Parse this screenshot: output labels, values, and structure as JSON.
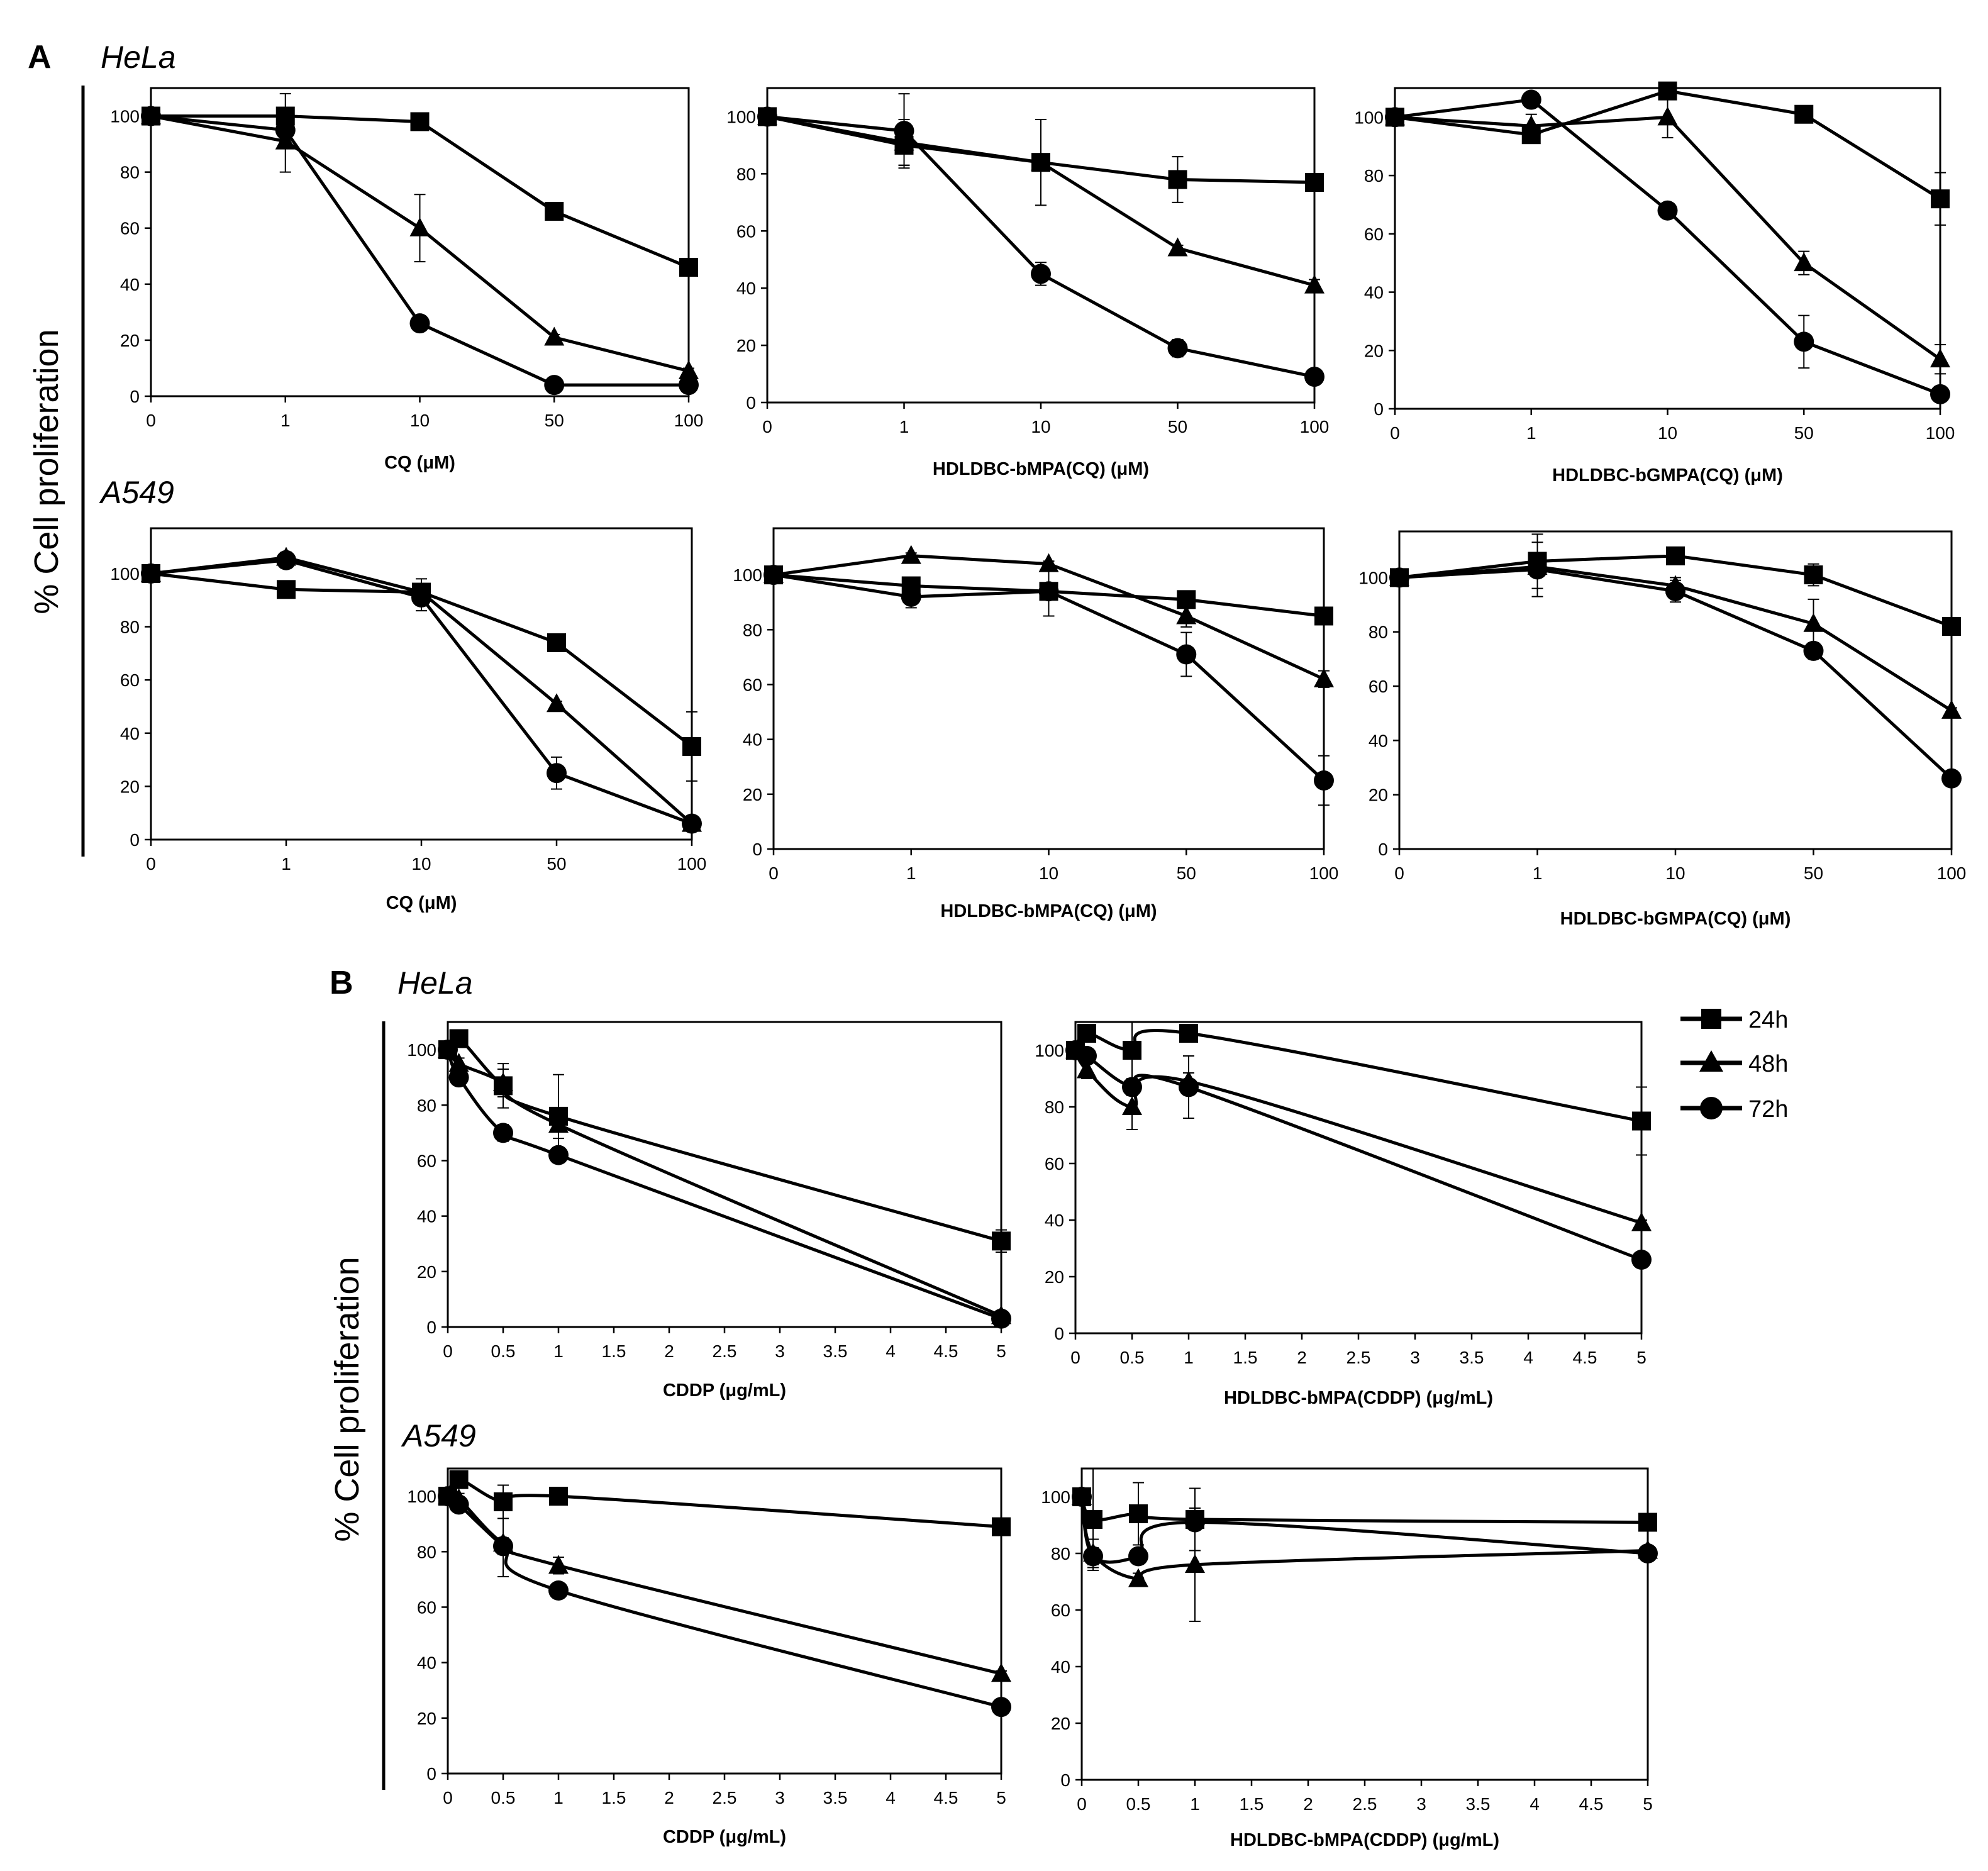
{
  "figure": {
    "panel_a_label": "A",
    "panel_b_label": "B",
    "y_axis_title": "% Cell proliferation",
    "cell_lines": {
      "hela": "HeLa",
      "a549": "A549"
    },
    "legend": [
      {
        "label": "24h",
        "marker": "square"
      },
      {
        "label": "48h",
        "marker": "triangle"
      },
      {
        "label": "72h",
        "marker": "circle"
      }
    ]
  },
  "chart_data": [
    {
      "id": "a-hela-cq",
      "type": "line",
      "panel": "A",
      "cell_line": "HeLa",
      "xlabel": "CQ (μM)",
      "ylabel": "% Cell proliferation",
      "categories": [
        "0",
        "1",
        "10",
        "50",
        "100"
      ],
      "yticks": [
        0,
        20,
        40,
        60,
        80,
        100
      ],
      "ylim": [
        0,
        110
      ],
      "series": [
        {
          "name": "24h",
          "marker": "square",
          "values": [
            100,
            100,
            98,
            66,
            46
          ],
          "errors": [
            0,
            8,
            2,
            1,
            1
          ]
        },
        {
          "name": "48h",
          "marker": "triangle",
          "values": [
            100,
            91,
            60,
            21,
            9
          ],
          "errors": [
            0,
            11,
            12,
            1,
            1
          ]
        },
        {
          "name": "72h",
          "marker": "circle",
          "values": [
            100,
            95,
            26,
            4,
            4
          ],
          "errors": [
            0,
            3,
            2,
            1,
            1
          ]
        }
      ]
    },
    {
      "id": "a-hela-bmpa",
      "type": "line",
      "panel": "A",
      "cell_line": "HeLa",
      "xlabel": "HDLDBC-bMPA(CQ) (μM)",
      "ylabel": "% Cell proliferation",
      "categories": [
        "0",
        "1",
        "10",
        "50",
        "100"
      ],
      "yticks": [
        0,
        20,
        40,
        60,
        80,
        100
      ],
      "ylim": [
        0,
        110
      ],
      "series": [
        {
          "name": "24h",
          "marker": "square",
          "values": [
            100,
            90,
            84,
            78,
            77
          ],
          "errors": [
            0,
            7,
            15,
            8,
            1
          ]
        },
        {
          "name": "48h",
          "marker": "triangle",
          "values": [
            100,
            91,
            84,
            54,
            41
          ],
          "errors": [
            0,
            8,
            3,
            1,
            2
          ]
        },
        {
          "name": "72h",
          "marker": "circle",
          "values": [
            100,
            95,
            45,
            19,
            9
          ],
          "errors": [
            0,
            13,
            4,
            3,
            2
          ]
        }
      ]
    },
    {
      "id": "a-hela-bgmpa",
      "type": "line",
      "panel": "A",
      "cell_line": "HeLa",
      "xlabel": "HDLDBC-bGMPA(CQ) (μM)",
      "ylabel": "% Cell proliferation",
      "categories": [
        "0",
        "1",
        "10",
        "50",
        "100"
      ],
      "yticks": [
        0,
        20,
        40,
        60,
        80,
        100
      ],
      "ylim": [
        0,
        110
      ],
      "series": [
        {
          "name": "24h",
          "marker": "square",
          "values": [
            100,
            94,
            109,
            101,
            72
          ],
          "errors": [
            0,
            2,
            1,
            1,
            9
          ]
        },
        {
          "name": "48h",
          "marker": "triangle",
          "values": [
            100,
            97,
            100,
            50,
            17
          ],
          "errors": [
            0,
            4,
            7,
            4,
            5
          ]
        },
        {
          "name": "72h",
          "marker": "circle",
          "values": [
            100,
            106,
            68,
            23,
            5
          ],
          "errors": [
            0,
            1,
            2,
            9,
            1
          ]
        }
      ]
    },
    {
      "id": "a-a549-cq",
      "type": "line",
      "panel": "A",
      "cell_line": "A549",
      "xlabel": "CQ (μM)",
      "ylabel": "% Cell proliferation",
      "categories": [
        "0",
        "1",
        "10",
        "50",
        "100"
      ],
      "yticks": [
        0,
        20,
        40,
        60,
        80,
        100
      ],
      "ylim": [
        0,
        117
      ],
      "series": [
        {
          "name": "24h",
          "marker": "square",
          "values": [
            100,
            94,
            93,
            74,
            35
          ],
          "errors": [
            0,
            1,
            1,
            3,
            13
          ]
        },
        {
          "name": "48h",
          "marker": "triangle",
          "values": [
            100,
            106,
            93,
            51,
            6
          ],
          "errors": [
            0,
            2,
            5,
            1,
            1
          ]
        },
        {
          "name": "72h",
          "marker": "circle",
          "values": [
            100,
            105,
            91,
            25,
            6
          ],
          "errors": [
            0,
            3,
            5,
            6,
            1
          ]
        }
      ]
    },
    {
      "id": "a-a549-bmpa",
      "type": "line",
      "panel": "A",
      "cell_line": "A549",
      "xlabel": "HDLDBC-bMPA(CQ) (μM)",
      "ylabel": "% Cell proliferation",
      "categories": [
        "0",
        "1",
        "10",
        "50",
        "100"
      ],
      "yticks": [
        0,
        20,
        40,
        60,
        80,
        100
      ],
      "ylim": [
        0,
        117
      ],
      "series": [
        {
          "name": "24h",
          "marker": "square",
          "values": [
            100,
            96,
            94,
            91,
            85
          ],
          "errors": [
            0,
            3,
            2,
            2,
            2
          ]
        },
        {
          "name": "48h",
          "marker": "triangle",
          "values": [
            100,
            107,
            104,
            85,
            62
          ],
          "errors": [
            0,
            1,
            1,
            4,
            3
          ]
        },
        {
          "name": "72h",
          "marker": "circle",
          "values": [
            100,
            92,
            94,
            71,
            25
          ],
          "errors": [
            0,
            4,
            9,
            8,
            9
          ]
        }
      ]
    },
    {
      "id": "a-a549-bgmpa",
      "type": "line",
      "panel": "A",
      "cell_line": "A549",
      "xlabel": "HDLDBC-bGMPA(CQ) (μM)",
      "ylabel": "% Cell proliferation",
      "categories": [
        "0",
        "1",
        "10",
        "50",
        "100"
      ],
      "yticks": [
        0,
        20,
        40,
        60,
        80,
        100
      ],
      "ylim": [
        0,
        117
      ],
      "series": [
        {
          "name": "24h",
          "marker": "square",
          "values": [
            100,
            106,
            108,
            101,
            82
          ],
          "errors": [
            0,
            10,
            2,
            4,
            3
          ]
        },
        {
          "name": "48h",
          "marker": "triangle",
          "values": [
            100,
            104,
            97,
            83,
            51
          ],
          "errors": [
            0,
            3,
            3,
            9,
            1
          ]
        },
        {
          "name": "72h",
          "marker": "circle",
          "values": [
            100,
            103,
            95,
            73,
            26
          ],
          "errors": [
            0,
            10,
            4,
            3,
            1
          ]
        }
      ]
    },
    {
      "id": "b-hela-cddp",
      "type": "line",
      "panel": "B",
      "cell_line": "HeLa",
      "xlabel": "CDDP (μg/mL)",
      "ylabel": "% Cell proliferation",
      "xticks": [
        "0",
        "0.5",
        "1",
        "1.5",
        "2",
        "2.5",
        "3",
        "3.5",
        "4",
        "4.5",
        "5"
      ],
      "xlim": [
        0,
        5
      ],
      "yticks": [
        0,
        20,
        40,
        60,
        80,
        100
      ],
      "ylim": [
        0,
        110
      ],
      "series": [
        {
          "name": "24h",
          "marker": "square",
          "x": [
            0,
            0.1,
            0.5,
            1,
            5
          ],
          "values": [
            100,
            104,
            87,
            76,
            31
          ],
          "errors": [
            0,
            2,
            8,
            15,
            4
          ]
        },
        {
          "name": "48h",
          "marker": "triangle",
          "x": [
            0,
            0.1,
            0.5,
            1,
            5
          ],
          "values": [
            100,
            95,
            88,
            73,
            4
          ],
          "errors": [
            0,
            2,
            5,
            5,
            1
          ]
        },
        {
          "name": "72h",
          "marker": "circle",
          "x": [
            0,
            0.1,
            0.5,
            1,
            5
          ],
          "values": [
            100,
            90,
            70,
            62,
            3
          ],
          "errors": [
            0,
            2,
            3,
            2,
            1
          ]
        }
      ]
    },
    {
      "id": "b-hela-bmpa",
      "type": "line",
      "panel": "B",
      "cell_line": "HeLa",
      "xlabel": "HDLDBC-bMPA(CDDP) (μg/mL)",
      "ylabel": "% Cell proliferation",
      "xticks": [
        "0",
        "0.5",
        "1",
        "1.5",
        "2",
        "2.5",
        "3",
        "3.5",
        "4",
        "4.5",
        "5"
      ],
      "xlim": [
        0,
        5
      ],
      "yticks": [
        0,
        20,
        40,
        60,
        80,
        100
      ],
      "ylim": [
        0,
        110
      ],
      "series": [
        {
          "name": "24h",
          "marker": "square",
          "x": [
            0,
            0.1,
            0.5,
            1,
            5
          ],
          "values": [
            100,
            106,
            100,
            106,
            75
          ],
          "errors": [
            0,
            1,
            10,
            2,
            12
          ]
        },
        {
          "name": "48h",
          "marker": "triangle",
          "x": [
            0,
            0.1,
            0.5,
            1,
            5
          ],
          "values": [
            100,
            93,
            80,
            89,
            39
          ],
          "errors": [
            0,
            3,
            8,
            3,
            1
          ]
        },
        {
          "name": "72h",
          "marker": "circle",
          "x": [
            0,
            0.1,
            0.5,
            1,
            5
          ],
          "values": [
            100,
            98,
            87,
            87,
            26
          ],
          "errors": [
            0,
            2,
            3,
            11,
            1
          ]
        }
      ]
    },
    {
      "id": "b-a549-cddp",
      "type": "line",
      "panel": "B",
      "cell_line": "A549",
      "xlabel": "CDDP (μg/mL)",
      "ylabel": "% Cell proliferation",
      "xticks": [
        "0",
        "0.5",
        "1",
        "1.5",
        "2",
        "2.5",
        "3",
        "3.5",
        "4",
        "4.5",
        "5"
      ],
      "xlim": [
        0,
        5
      ],
      "yticks": [
        0,
        20,
        40,
        60,
        80,
        100
      ],
      "ylim": [
        0,
        110
      ],
      "series": [
        {
          "name": "24h",
          "marker": "square",
          "x": [
            0,
            0.1,
            0.5,
            1,
            5
          ],
          "values": [
            100,
            106,
            98,
            100,
            89
          ],
          "errors": [
            0,
            2,
            6,
            2,
            1
          ]
        },
        {
          "name": "48h",
          "marker": "triangle",
          "x": [
            0,
            0.1,
            0.5,
            1,
            5
          ],
          "values": [
            100,
            99,
            83,
            75,
            36
          ],
          "errors": [
            0,
            2,
            12,
            3,
            1
          ]
        },
        {
          "name": "72h",
          "marker": "circle",
          "x": [
            0,
            0.1,
            0.5,
            1,
            5
          ],
          "values": [
            100,
            97,
            82,
            66,
            24
          ],
          "errors": [
            0,
            2,
            3,
            1,
            1
          ]
        }
      ]
    },
    {
      "id": "b-a549-bmpa",
      "type": "line",
      "panel": "B",
      "cell_line": "A549",
      "xlabel": "HDLDBC-bMPA(CDDP) (μg/mL)",
      "ylabel": "% Cell proliferation",
      "xticks": [
        "0",
        "0.5",
        "1",
        "1.5",
        "2",
        "2.5",
        "3",
        "3.5",
        "4",
        "4.5",
        "5"
      ],
      "xlim": [
        0,
        5
      ],
      "yticks": [
        0,
        20,
        40,
        60,
        80,
        100
      ],
      "ylim": [
        0,
        110
      ],
      "series": [
        {
          "name": "24h",
          "marker": "square",
          "x": [
            0,
            0.1,
            0.5,
            1,
            5
          ],
          "values": [
            100,
            92,
            94,
            92,
            91
          ],
          "errors": [
            0,
            18,
            11,
            11,
            2
          ]
        },
        {
          "name": "48h",
          "marker": "triangle",
          "x": [
            0,
            0.1,
            0.5,
            1,
            5
          ],
          "values": [
            100,
            80,
            71,
            76,
            81
          ],
          "errors": [
            0,
            5,
            2,
            20,
            1
          ]
        },
        {
          "name": "72h",
          "marker": "circle",
          "x": [
            0,
            0.1,
            0.5,
            1,
            5
          ],
          "values": [
            100,
            79,
            79,
            91,
            80
          ],
          "errors": [
            0,
            3,
            2,
            2,
            1
          ]
        }
      ]
    }
  ]
}
